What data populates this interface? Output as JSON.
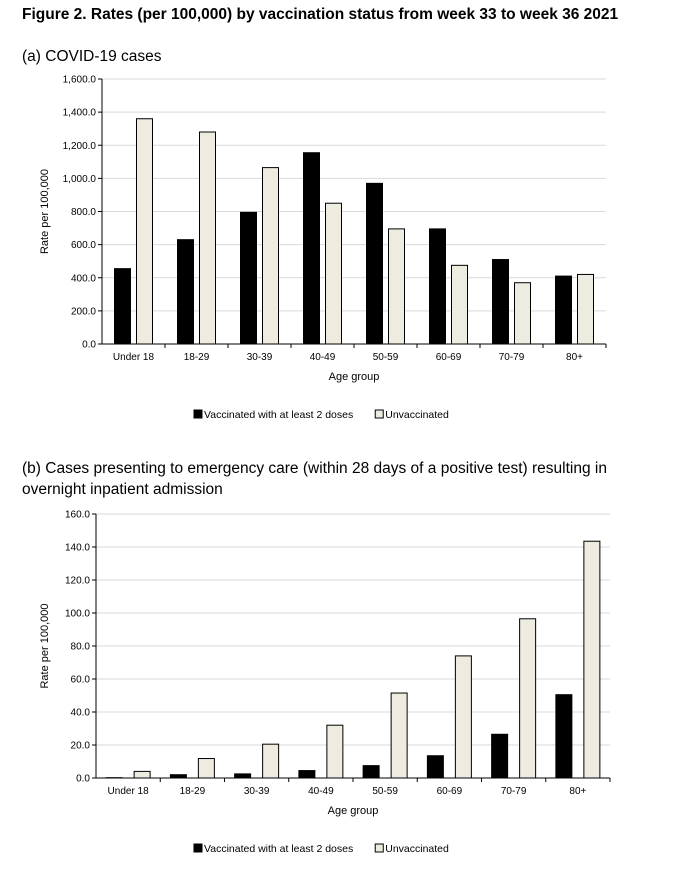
{
  "figure_title": "Figure 2. Rates (per 100,000) by vaccination status from week 33 to week 36 2021",
  "colors": {
    "vaccinated": "#000000",
    "unvaccinated": "#eeece1",
    "grid": "#d9d9d9"
  },
  "chart_data": [
    {
      "type": "bar",
      "title": "(a) COVID-19 cases",
      "xlabel": "Age group",
      "ylabel": "Rate per 100,000",
      "ylim": [
        0,
        1600
      ],
      "yticks": [
        0,
        200,
        400,
        600,
        800,
        1000,
        1200,
        1400,
        1600
      ],
      "ytick_labels": [
        "0.0",
        "200.0",
        "400.0",
        "600.0",
        "800.0",
        "1,000.0",
        "1,200.0",
        "1,400.0",
        "1,600.0"
      ],
      "grid": true,
      "legend_position": "bottom",
      "categories": [
        "Under 18",
        "18-29",
        "30-39",
        "40-49",
        "50-59",
        "60-69",
        "70-79",
        "80+"
      ],
      "series": [
        {
          "name": "Vaccinated with at least 2 doses",
          "color": "#000000",
          "values": [
            455,
            630,
            795,
            1155,
            970,
            695,
            510,
            410
          ]
        },
        {
          "name": "Unvaccinated",
          "color": "#eeece1",
          "values": [
            1360,
            1280,
            1065,
            850,
            695,
            475,
            370,
            420
          ]
        }
      ]
    },
    {
      "type": "bar",
      "title": "(b) Cases presenting to emergency care (within 28 days of a positive test) resulting in overnight inpatient admission",
      "xlabel": "Age group",
      "ylabel": "Rate per 100,000",
      "ylim": [
        0,
        160
      ],
      "yticks": [
        0,
        20,
        40,
        60,
        80,
        100,
        120,
        140,
        160
      ],
      "ytick_labels": [
        "0.0",
        "20.0",
        "40.0",
        "60.0",
        "80.0",
        "100.0",
        "120.0",
        "140.0",
        "160.0"
      ],
      "grid": true,
      "legend_position": "bottom",
      "categories": [
        "Under 18",
        "18-29",
        "30-39",
        "40-49",
        "50-59",
        "60-69",
        "70-79",
        "80+"
      ],
      "series": [
        {
          "name": "Vaccinated with at least 2 doses",
          "color": "#000000",
          "values": [
            0.2,
            2.0,
            2.5,
            4.5,
            7.5,
            13.5,
            26.5,
            50.5
          ]
        },
        {
          "name": "Unvaccinated",
          "color": "#eeece1",
          "values": [
            4.0,
            11.8,
            20.5,
            32.0,
            51.5,
            74.0,
            96.5,
            143.5
          ]
        }
      ]
    }
  ]
}
